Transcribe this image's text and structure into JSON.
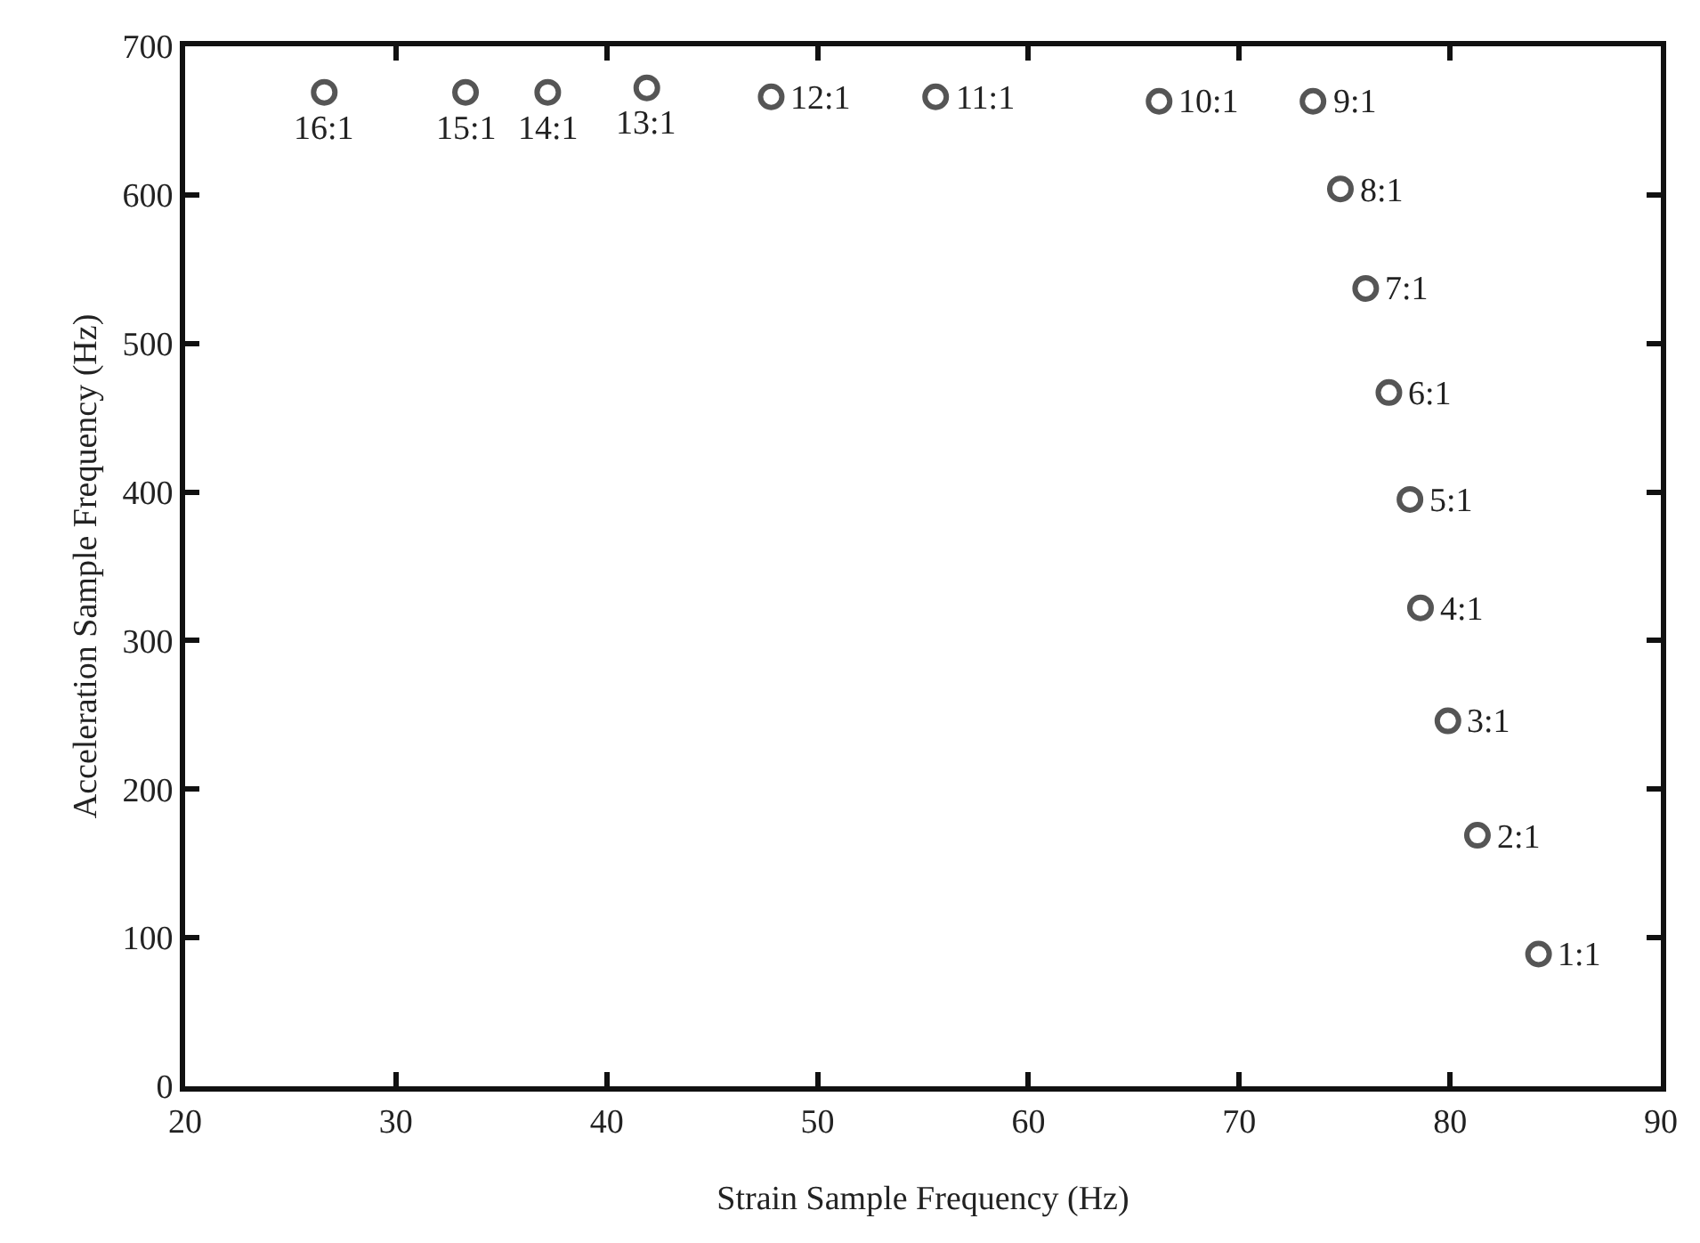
{
  "chart_data": {
    "type": "scatter",
    "xlabel": "Strain Sample Frequency (Hz)",
    "ylabel": "Acceleration Sample Frequency (Hz)",
    "x": [
      84.2,
      81.3,
      79.9,
      78.6,
      78.1,
      77.1,
      76.0,
      74.8,
      73.5,
      66.2,
      55.6,
      47.8,
      41.9,
      37.2,
      33.3,
      26.6
    ],
    "series": [
      {
        "color": "#555555",
        "values": [
          89,
          169,
          246,
          322,
          395,
          467,
          537,
          604,
          663,
          663,
          666,
          666,
          672,
          669,
          669,
          669
        ]
      }
    ],
    "marker": "circle",
    "xlim": [
      20,
      90
    ],
    "xticks": [
      20,
      30,
      40,
      50,
      60,
      70,
      80,
      90
    ],
    "ylim": [
      0,
      700
    ],
    "yticks": [
      0,
      100,
      200,
      300,
      400,
      500,
      600,
      700
    ],
    "annotations": [
      {
        "text": "1:1",
        "x": 84.2,
        "y": 89
      },
      {
        "text": "2:1",
        "x": 81.3,
        "y": 169
      },
      {
        "text": "3:1",
        "x": 79.9,
        "y": 246
      },
      {
        "text": "4:1",
        "x": 78.6,
        "y": 322
      },
      {
        "text": "5:1",
        "x": 78.1,
        "y": 395
      },
      {
        "text": "6:1",
        "x": 77.1,
        "y": 467
      },
      {
        "text": "7:1",
        "x": 76.0,
        "y": 537
      },
      {
        "text": "8:1",
        "x": 74.8,
        "y": 604
      },
      {
        "text": "9:1",
        "x": 73.5,
        "y": 663
      },
      {
        "text": "10:1",
        "x": 66.2,
        "y": 663
      },
      {
        "text": "11:1",
        "x": 55.6,
        "y": 666
      },
      {
        "text": "12:1",
        "x": 47.8,
        "y": 666
      },
      {
        "text": "13:1",
        "x": 41.9,
        "y": 672
      },
      {
        "text": "14:1",
        "x": 37.2,
        "y": 669
      },
      {
        "text": "15:1",
        "x": 33.3,
        "y": 669
      },
      {
        "text": "16:1",
        "x": 26.6,
        "y": 669
      }
    ]
  }
}
